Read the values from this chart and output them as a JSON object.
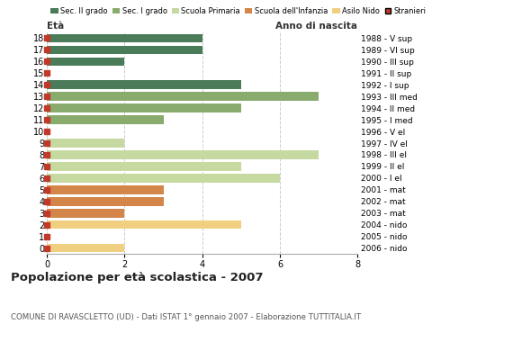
{
  "ages": [
    18,
    17,
    16,
    15,
    14,
    13,
    12,
    11,
    10,
    9,
    8,
    7,
    6,
    5,
    4,
    3,
    2,
    1,
    0
  ],
  "years": [
    "1988 - V sup",
    "1989 - VI sup",
    "1990 - III sup",
    "1991 - II sup",
    "1992 - I sup",
    "1993 - III med",
    "1994 - II med",
    "1995 - I med",
    "1996 - V el",
    "1997 - IV el",
    "1998 - III el",
    "1999 - II el",
    "2000 - I el",
    "2001 - mat",
    "2002 - mat",
    "2003 - mat",
    "2004 - nido",
    "2005 - nido",
    "2006 - nido"
  ],
  "values": [
    4,
    4,
    2,
    0,
    5,
    7,
    5,
    3,
    0,
    2,
    7,
    5,
    6,
    3,
    3,
    2,
    5,
    0,
    2
  ],
  "bar_colors": [
    "#4a7c59",
    "#4a7c59",
    "#4a7c59",
    "#4a7c59",
    "#4a7c59",
    "#8aab6e",
    "#8aab6e",
    "#8aab6e",
    "#c5d9a0",
    "#c5d9a0",
    "#c5d9a0",
    "#c5d9a0",
    "#c5d9a0",
    "#d4864a",
    "#d4864a",
    "#d4864a",
    "#f0d080",
    "#f0d080",
    "#f0d080"
  ],
  "stranieri_color": "#c0392b",
  "legend_labels": [
    "Sec. II grado",
    "Sec. I grado",
    "Scuola Primaria",
    "Scuola dell'Infanzia",
    "Asilo Nido",
    "Stranieri"
  ],
  "legend_colors": [
    "#4a7c59",
    "#8aab6e",
    "#c5d9a0",
    "#d4864a",
    "#f0d080",
    "#c0392b"
  ],
  "title": "Popolazione per età scolastica - 2007",
  "subtitle": "COMUNE DI RAVASCLETTO (UD) - Dati ISTAT 1° gennaio 2007 - Elaborazione TUTTITALIA.IT",
  "xlabel_left": "Età",
  "xlabel_right": "Anno di nascita",
  "xlim": [
    0,
    8
  ],
  "xticks": [
    0,
    2,
    4,
    6,
    8
  ],
  "background_color": "#ffffff",
  "grid_color": "#cccccc",
  "bar_height": 0.75
}
